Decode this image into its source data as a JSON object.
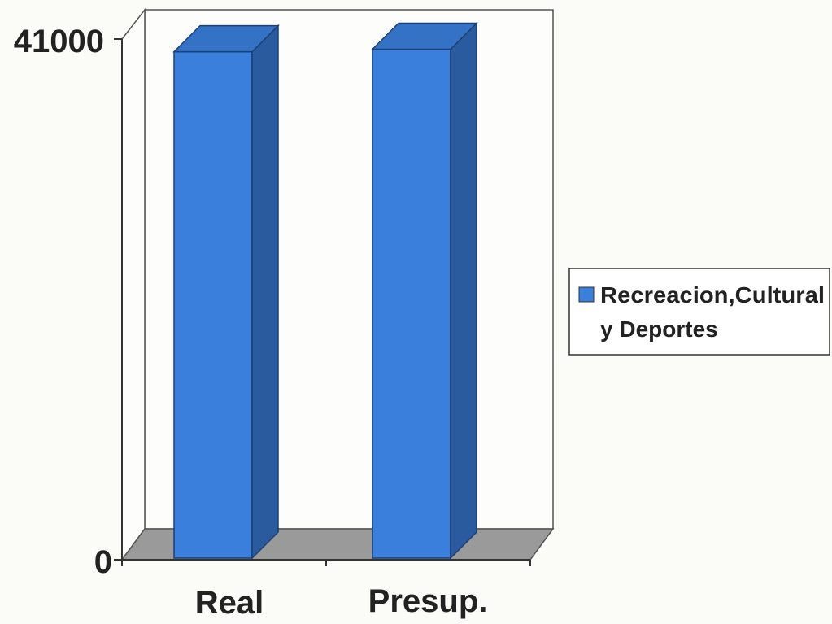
{
  "chart_data": {
    "type": "bar",
    "categories": [
      "Real",
      "Presup."
    ],
    "series": [
      {
        "name": "Recreacion,Cultural y Deportes",
        "values": [
          40000,
          40200
        ],
        "color": "#3a7fdc"
      }
    ],
    "ylim": [
      0,
      41000
    ],
    "yticks": [
      "41000",
      "0"
    ],
    "title": "",
    "xlabel": "",
    "ylabel": "",
    "legend": {
      "position": "right",
      "lines": [
        "Recreacion,Cultural",
        "y Deportes"
      ]
    },
    "grid": false,
    "three_d": true
  }
}
